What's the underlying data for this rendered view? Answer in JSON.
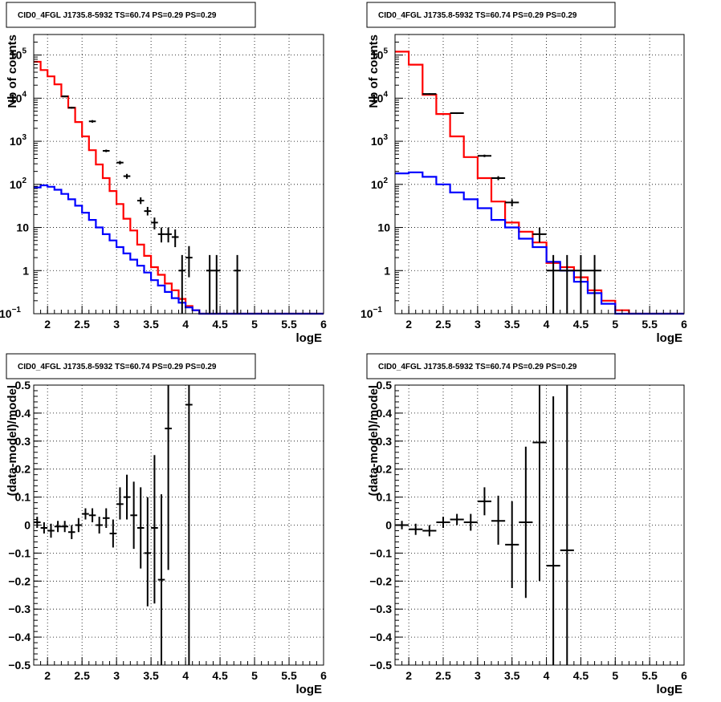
{
  "colors": {
    "data": "#000000",
    "total_model": "#ff0000",
    "component_model": "#0000ff",
    "grid": "#000000"
  },
  "chart_data": [
    {
      "type": "histogram",
      "title": "CID0_4FGL J1735.8-5932 TS=60.74 PS=0.29 PS=0.29",
      "xlabel": "logE",
      "ylabel": "Nb of counts",
      "xscale": "linear",
      "yscale": "log",
      "xlim": [
        1.8,
        6
      ],
      "ylim": [
        0.1,
        300000
      ],
      "grid": true,
      "x_ticks": [
        "2",
        "2.5",
        "3",
        "3.5",
        "4",
        "4.5",
        "5",
        "5.5",
        "6"
      ],
      "y_ticks": [
        {
          "value": 0.1,
          "label": "10",
          "exp": "−1"
        },
        {
          "value": 1,
          "label": "1",
          "exp": ""
        },
        {
          "value": 10,
          "label": "10",
          "exp": ""
        },
        {
          "value": 100,
          "label": "10",
          "exp": "2"
        },
        {
          "value": 1000,
          "label": "10",
          "exp": "3"
        },
        {
          "value": 10000,
          "label": "10",
          "exp": "4"
        },
        {
          "value": 100000,
          "label": "10",
          "exp": "5"
        }
      ],
      "bin_edges": [
        1.8,
        1.9,
        2.0,
        2.1,
        2.2,
        2.3,
        2.4,
        2.5,
        2.6,
        2.7,
        2.8,
        2.9,
        3.0,
        3.1,
        3.2,
        3.3,
        3.4,
        3.5,
        3.6,
        3.7,
        3.8,
        3.9,
        4.0,
        4.1,
        4.2,
        4.3,
        4.4,
        4.5,
        4.6,
        4.7,
        4.8,
        4.9,
        5.0,
        5.1,
        5.2,
        5.3,
        5.4,
        5.5,
        5.6,
        5.7,
        5.8,
        5.9,
        6.0
      ],
      "series": [
        {
          "name": "",
          "style": "step",
          "color_key": "total_model",
          "values": [
            70000,
            45000,
            32000,
            21000,
            11000,
            6000,
            2800,
            1300,
            620,
            290,
            140,
            70,
            35,
            16,
            8.5,
            4,
            2.2,
            1.2,
            0.8,
            0.5,
            0.35,
            0.22,
            0.15,
            0.12,
            0.1,
            0.1,
            0.1,
            0.1,
            0.1,
            0.1,
            0.1,
            0.1,
            0.1,
            0.1,
            0.1,
            0.1,
            0.1,
            0.1,
            0.1,
            0.1,
            0.1,
            0.1
          ]
        },
        {
          "name": "",
          "style": "step",
          "color_key": "component_model",
          "values": [
            85,
            95,
            88,
            75,
            60,
            45,
            32,
            22,
            15,
            10,
            7,
            5,
            3.5,
            2.5,
            1.8,
            1.3,
            0.9,
            0.6,
            0.45,
            0.32,
            0.23,
            0.18,
            0.14,
            0.12,
            0.1,
            0.1,
            0.1,
            0.1,
            0.1,
            0.1,
            0.1,
            0.1,
            0.1,
            0.1,
            0.1,
            0.1,
            0.1,
            0.1,
            0.1,
            0.1,
            0.1,
            0.1
          ]
        }
      ],
      "data_points": [
        {
          "x": 2.25,
          "y": 11000,
          "ylo": 10500,
          "yhi": 11500
        },
        {
          "x": 2.35,
          "y": 6000,
          "ylo": 5700,
          "yhi": 6300
        },
        {
          "x": 2.65,
          "y": 2900,
          "ylo": 2700,
          "yhi": 3100
        },
        {
          "x": 2.85,
          "y": 600,
          "ylo": 560,
          "yhi": 640
        },
        {
          "x": 3.05,
          "y": 320,
          "ylo": 290,
          "yhi": 350
        },
        {
          "x": 3.15,
          "y": 155,
          "ylo": 135,
          "yhi": 175
        },
        {
          "x": 3.35,
          "y": 42,
          "ylo": 35,
          "yhi": 50
        },
        {
          "x": 3.45,
          "y": 24,
          "ylo": 19,
          "yhi": 30
        },
        {
          "x": 3.55,
          "y": 13,
          "ylo": 9,
          "yhi": 17
        },
        {
          "x": 3.65,
          "y": 7,
          "ylo": 4.5,
          "yhi": 10
        },
        {
          "x": 3.75,
          "y": 7,
          "ylo": 4.5,
          "yhi": 10
        },
        {
          "x": 3.85,
          "y": 6,
          "ylo": 3.5,
          "yhi": 9
        },
        {
          "x": 3.95,
          "y": 1,
          "ylo": 0.1,
          "yhi": 2.3
        },
        {
          "x": 4.05,
          "y": 2,
          "ylo": 0.7,
          "yhi": 3.7
        },
        {
          "x": 4.35,
          "y": 1,
          "ylo": 0.1,
          "yhi": 2.3
        },
        {
          "x": 4.45,
          "y": 1,
          "ylo": 0.1,
          "yhi": 2.3
        },
        {
          "x": 4.75,
          "y": 1,
          "ylo": 0.1,
          "yhi": 2.3
        }
      ]
    },
    {
      "type": "histogram",
      "title": "CID0_4FGL J1735.8-5932 TS=60.74 PS=0.29 PS=0.29",
      "xlabel": "logE",
      "ylabel": "Nb of counts",
      "xscale": "linear",
      "yscale": "log",
      "xlim": [
        1.8,
        6
      ],
      "ylim": [
        0.1,
        300000
      ],
      "grid": true,
      "x_ticks": [
        "2",
        "2.5",
        "3",
        "3.5",
        "4",
        "4.5",
        "5",
        "5.5",
        "6"
      ],
      "y_ticks": [
        {
          "value": 0.1,
          "label": "10",
          "exp": "−1"
        },
        {
          "value": 1,
          "label": "1",
          "exp": ""
        },
        {
          "value": 10,
          "label": "10",
          "exp": ""
        },
        {
          "value": 100,
          "label": "10",
          "exp": "2"
        },
        {
          "value": 1000,
          "label": "10",
          "exp": "3"
        },
        {
          "value": 10000,
          "label": "10",
          "exp": "4"
        },
        {
          "value": 100000,
          "label": "10",
          "exp": "5"
        }
      ],
      "bin_edges": [
        1.8,
        2.0,
        2.2,
        2.4,
        2.6,
        2.8,
        3.0,
        3.2,
        3.4,
        3.6,
        3.8,
        4.0,
        4.2,
        4.4,
        4.6,
        4.8,
        5.0,
        5.2,
        5.4,
        5.6,
        5.8,
        6.0
      ],
      "series": [
        {
          "name": "",
          "style": "step",
          "color_key": "total_model",
          "values": [
            120000,
            60000,
            12000,
            4300,
            1300,
            430,
            140,
            40,
            13,
            8,
            4.5,
            1.5,
            1.2,
            0.7,
            0.35,
            0.2,
            0.12,
            0.1,
            0.1,
            0.1,
            0.1
          ]
        },
        {
          "name": "",
          "style": "step",
          "color_key": "component_model",
          "values": [
            180,
            190,
            150,
            100,
            65,
            45,
            28,
            15,
            10,
            5.5,
            3.5,
            1.6,
            1.0,
            0.55,
            0.3,
            0.17,
            0.1,
            0.1,
            0.1,
            0.1,
            0.1
          ]
        }
      ],
      "data_points": [
        {
          "x": 2.3,
          "y": 12500,
          "ylo": 12000,
          "yhi": 13000
        },
        {
          "x": 2.7,
          "y": 4500,
          "ylo": 4300,
          "yhi": 4700
        },
        {
          "x": 3.1,
          "y": 460,
          "ylo": 430,
          "yhi": 490
        },
        {
          "x": 3.3,
          "y": 140,
          "ylo": 125,
          "yhi": 155
        },
        {
          "x": 3.5,
          "y": 38,
          "ylo": 31,
          "yhi": 45
        },
        {
          "x": 3.9,
          "y": 7,
          "ylo": 4.5,
          "yhi": 10
        },
        {
          "x": 4.1,
          "y": 1,
          "ylo": 0.1,
          "yhi": 2.3
        },
        {
          "x": 4.3,
          "y": 1,
          "ylo": 0.1,
          "yhi": 2.3
        },
        {
          "x": 4.5,
          "y": 1,
          "ylo": 0.1,
          "yhi": 2.3
        },
        {
          "x": 4.7,
          "y": 1,
          "ylo": 0.1,
          "yhi": 2.3
        }
      ]
    },
    {
      "type": "scatter",
      "title": "CID0_4FGL J1735.8-5932 TS=60.74 PS=0.29 PS=0.29",
      "xlabel": "logE",
      "ylabel": "(data-model)/model",
      "xscale": "linear",
      "yscale": "linear",
      "xlim": [
        1.8,
        6
      ],
      "ylim": [
        -0.5,
        0.5
      ],
      "grid": true,
      "x_ticks": [
        "2",
        "2.5",
        "3",
        "3.5",
        "4",
        "4.5",
        "5",
        "5.5",
        "6"
      ],
      "y_ticks": [
        "−0.5",
        "−0.4",
        "−0.3",
        "−0.2",
        "−0.1",
        "0",
        "0.1",
        "0.2",
        "0.3",
        "0.4",
        "0.5"
      ],
      "y_tick_values": [
        -0.5,
        -0.4,
        -0.3,
        -0.2,
        -0.1,
        0,
        0.1,
        0.2,
        0.3,
        0.4,
        0.5
      ],
      "bin_halfwidth": 0.05,
      "data_points": [
        {
          "x": 1.85,
          "y": 0.01,
          "ylo": -0.01,
          "yhi": 0.03
        },
        {
          "x": 1.95,
          "y": -0.01,
          "ylo": -0.03,
          "yhi": 0.01
        },
        {
          "x": 2.05,
          "y": -0.02,
          "ylo": -0.045,
          "yhi": 0.005
        },
        {
          "x": 2.15,
          "y": -0.005,
          "ylo": -0.025,
          "yhi": 0.015
        },
        {
          "x": 2.25,
          "y": -0.005,
          "ylo": -0.025,
          "yhi": 0.015
        },
        {
          "x": 2.35,
          "y": -0.025,
          "ylo": -0.05,
          "yhi": 0.0
        },
        {
          "x": 2.45,
          "y": 0.0,
          "ylo": -0.025,
          "yhi": 0.025
        },
        {
          "x": 2.55,
          "y": 0.04,
          "ylo": 0.02,
          "yhi": 0.06
        },
        {
          "x": 2.65,
          "y": 0.035,
          "ylo": 0.01,
          "yhi": 0.06
        },
        {
          "x": 2.75,
          "y": 0.0,
          "ylo": -0.03,
          "yhi": 0.03
        },
        {
          "x": 2.85,
          "y": 0.025,
          "ylo": -0.01,
          "yhi": 0.06
        },
        {
          "x": 2.95,
          "y": -0.03,
          "ylo": -0.08,
          "yhi": 0.02
        },
        {
          "x": 3.05,
          "y": 0.075,
          "ylo": 0.02,
          "yhi": 0.135
        },
        {
          "x": 3.15,
          "y": 0.1,
          "ylo": 0.02,
          "yhi": 0.18
        },
        {
          "x": 3.25,
          "y": 0.035,
          "ylo": -0.085,
          "yhi": 0.155
        },
        {
          "x": 3.35,
          "y": -0.01,
          "ylo": -0.155,
          "yhi": 0.135
        },
        {
          "x": 3.45,
          "y": -0.1,
          "ylo": -0.29,
          "yhi": 0.1
        },
        {
          "x": 3.55,
          "y": -0.01,
          "ylo": -0.28,
          "yhi": 0.25
        },
        {
          "x": 3.65,
          "y": -0.195,
          "ylo": -0.5,
          "yhi": 0.11
        },
        {
          "x": 3.75,
          "y": 0.345,
          "ylo": -0.16,
          "yhi": 0.5
        },
        {
          "x": 4.05,
          "y": 0.43,
          "ylo": -0.5,
          "yhi": 0.5
        }
      ]
    },
    {
      "type": "scatter",
      "title": "CID0_4FGL J1735.8-5932 TS=60.74 PS=0.29 PS=0.29",
      "xlabel": "logE",
      "ylabel": "(data-model)/model",
      "xscale": "linear",
      "yscale": "linear",
      "xlim": [
        1.8,
        6
      ],
      "ylim": [
        -0.5,
        0.5
      ],
      "grid": true,
      "x_ticks": [
        "2",
        "2.5",
        "3",
        "3.5",
        "4",
        "4.5",
        "5",
        "5.5",
        "6"
      ],
      "y_ticks": [
        "−0.5",
        "−0.4",
        "−0.3",
        "−0.2",
        "−0.1",
        "0",
        "0.1",
        "0.2",
        "0.3",
        "0.4",
        "0.5"
      ],
      "y_tick_values": [
        -0.5,
        -0.4,
        -0.3,
        -0.2,
        -0.1,
        0,
        0.1,
        0.2,
        0.3,
        0.4,
        0.5
      ],
      "bin_halfwidth": 0.1,
      "data_points": [
        {
          "x": 1.9,
          "y": 0.0,
          "ylo": -0.015,
          "yhi": 0.015
        },
        {
          "x": 2.1,
          "y": -0.015,
          "ylo": -0.035,
          "yhi": 0.005
        },
        {
          "x": 2.3,
          "y": -0.02,
          "ylo": -0.04,
          "yhi": 0.0
        },
        {
          "x": 2.5,
          "y": 0.01,
          "ylo": -0.01,
          "yhi": 0.03
        },
        {
          "x": 2.7,
          "y": 0.02,
          "ylo": 0.0,
          "yhi": 0.04
        },
        {
          "x": 2.9,
          "y": 0.01,
          "ylo": -0.02,
          "yhi": 0.04
        },
        {
          "x": 3.1,
          "y": 0.085,
          "ylo": 0.035,
          "yhi": 0.135
        },
        {
          "x": 3.3,
          "y": 0.015,
          "ylo": -0.07,
          "yhi": 0.105
        },
        {
          "x": 3.5,
          "y": -0.07,
          "ylo": -0.225,
          "yhi": 0.085
        },
        {
          "x": 3.7,
          "y": 0.01,
          "ylo": -0.26,
          "yhi": 0.28
        },
        {
          "x": 3.9,
          "y": 0.295,
          "ylo": -0.2,
          "yhi": 0.5
        },
        {
          "x": 4.1,
          "y": -0.145,
          "ylo": -0.5,
          "yhi": 0.46
        },
        {
          "x": 4.3,
          "y": -0.09,
          "ylo": -0.5,
          "yhi": 0.5
        }
      ]
    }
  ]
}
